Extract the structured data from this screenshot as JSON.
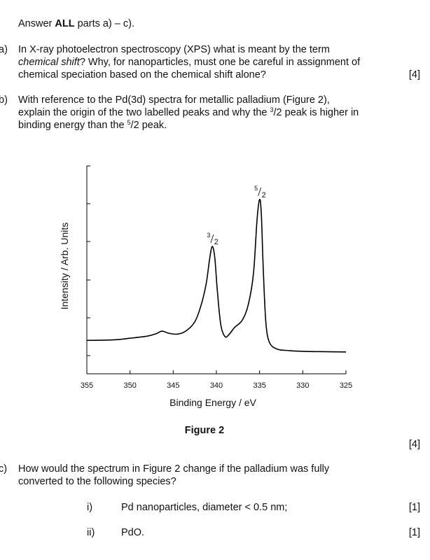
{
  "intro": {
    "prefix": "Answer ",
    "bold": "ALL",
    "suffix": " parts a) – c)."
  },
  "question_a": {
    "letter": "a)",
    "line1": "In X-ray photoelectron spectroscopy (XPS) what is meant by the term",
    "line2_italic": "chemical shift",
    "line2_rest": "? Why, for nanoparticles, must one be careful in assignment of",
    "line3": "chemical speciation based on the chemical shift alone?",
    "marks": "[4]"
  },
  "question_b": {
    "letter": "b)",
    "line1": "With reference to the Pd(3d) spectra for metallic palladium (Figure 2),",
    "line2_pre": "explain the origin of the two labelled peaks and why the ",
    "line2_num": "3",
    "line2_den": "/2",
    "line2_post": " peak is higher in",
    "line3_pre": "binding energy than the ",
    "line3_num": "5",
    "line3_den": "/2",
    "line3_post": " peak.",
    "marks": "[4]"
  },
  "figure": {
    "caption": "Figure 2"
  },
  "chart_data": {
    "type": "line",
    "xlabel": "Binding Energy / eV",
    "ylabel": "Intensity / Arb. Units",
    "xlim": [
      355,
      325
    ],
    "x_reversed": true,
    "x_ticks": [
      355,
      350,
      345,
      340,
      335,
      330,
      325
    ],
    "ylim": [
      0,
      1
    ],
    "y_tick_count": 6,
    "grid": false,
    "legend": "none",
    "series": [
      {
        "x": [
          355.0,
          352.0,
          350.0,
          348.0,
          347.0,
          346.3,
          345.5,
          344.5,
          343.5,
          342.5,
          341.8,
          341.2,
          340.8,
          340.5,
          340.2,
          339.9,
          339.5,
          339.0,
          338.5,
          337.9,
          337.0,
          336.3,
          335.7,
          335.3,
          335.0,
          334.8,
          334.6,
          334.3,
          333.9,
          333.0,
          331.5,
          330.0,
          328.0,
          325.0
        ],
        "y": [
          0.092,
          0.095,
          0.105,
          0.118,
          0.132,
          0.148,
          0.135,
          0.13,
          0.15,
          0.205,
          0.3,
          0.43,
          0.578,
          0.66,
          0.6,
          0.4,
          0.19,
          0.115,
          0.13,
          0.17,
          0.215,
          0.31,
          0.5,
          0.82,
          0.945,
          0.86,
          0.56,
          0.22,
          0.085,
          0.04,
          0.03,
          0.026,
          0.024,
          0.022
        ]
      }
    ],
    "annotations": [
      {
        "num": "3",
        "den": "2",
        "x": 340.5,
        "y": 0.69
      },
      {
        "num": "5",
        "den": "2",
        "x": 335.0,
        "y": 0.975
      }
    ]
  },
  "question_c": {
    "letter": "c)",
    "line1": "How would the spectrum in Figure 2 change if the palladium was fully",
    "line2": "converted to the following species?",
    "marks_c": "[4]",
    "items": [
      {
        "num": "i)",
        "text": "Pd nanoparticles, diameter < 0.5 nm;",
        "marks": "[1]"
      },
      {
        "num": "ii)",
        "text": "PdO.",
        "marks": "[1]"
      }
    ]
  }
}
